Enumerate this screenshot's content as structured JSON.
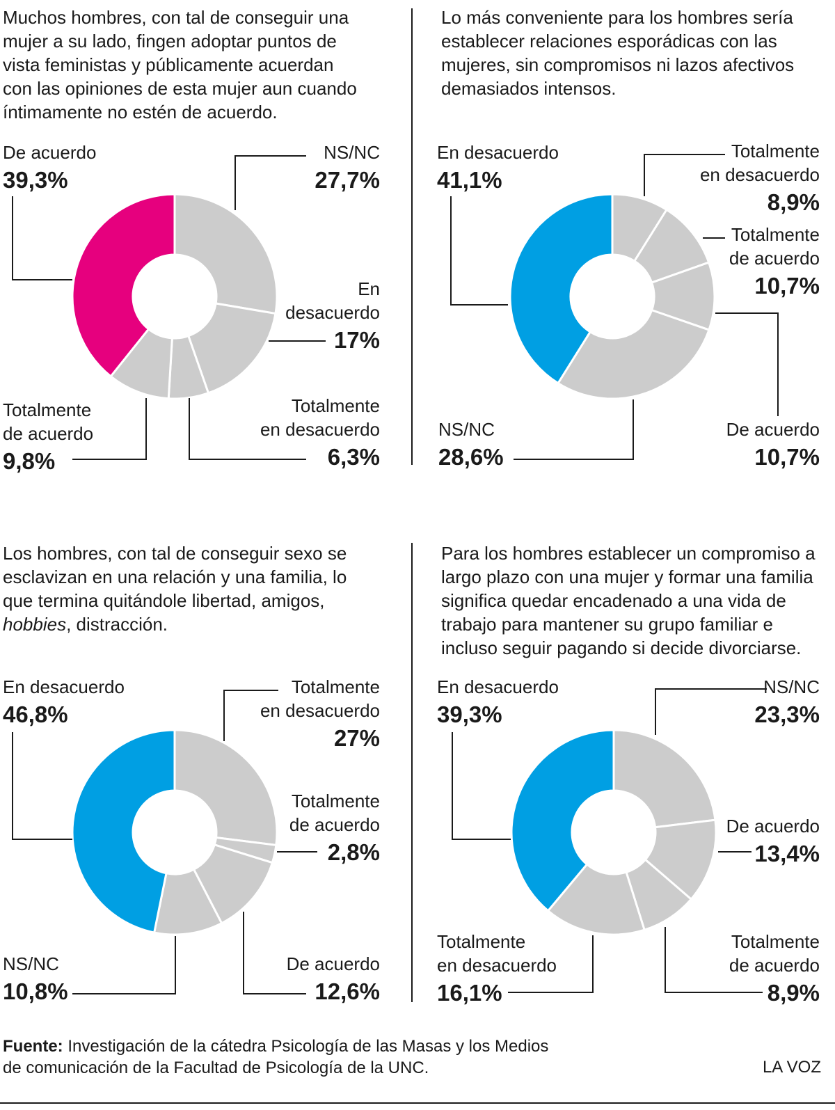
{
  "chart_data": [
    {
      "type": "pie",
      "question": [
        "Muchos hombres, con tal de conseguir una",
        "mujer a su lado, fingen adoptar puntos de",
        "vista feministas y públicamente acuerdan",
        "con las opiniones de esta mujer aun cuando",
        "íntimamente no estén de acuerdo."
      ],
      "slices": [
        {
          "label": [
            "NS/NC"
          ],
          "value": 27.7,
          "display": "27,7%",
          "color": "#cccccc"
        },
        {
          "label": [
            "En",
            "desacuerdo"
          ],
          "value": 17,
          "display": "17%",
          "color": "#cccccc"
        },
        {
          "label": [
            "Totalmente",
            "en desacuerdo"
          ],
          "value": 6.3,
          "display": "6,3%",
          "color": "#cccccc"
        },
        {
          "label": [
            "Totalmente",
            "de acuerdo"
          ],
          "value": 9.8,
          "display": "9,8%",
          "color": "#cccccc"
        },
        {
          "label": [
            "De acuerdo"
          ],
          "value": 39.3,
          "display": "39,3%",
          "color": "#e6007e"
        }
      ]
    },
    {
      "type": "pie",
      "question": [
        "Lo más conveniente para los hombres sería",
        "establecer relaciones esporádicas con las",
        "mujeres, sin compromisos ni lazos afectivos",
        "demasiados intensos."
      ],
      "slices": [
        {
          "label": [
            "Totalmente",
            "en desacuerdo"
          ],
          "value": 8.9,
          "display": "8,9%",
          "color": "#cccccc"
        },
        {
          "label": [
            "Totalmente",
            "de acuerdo"
          ],
          "value": 10.7,
          "display": "10,7%",
          "color": "#cccccc"
        },
        {
          "label": [
            "De acuerdo"
          ],
          "value": 10.7,
          "display": "10,7%",
          "color": "#cccccc"
        },
        {
          "label": [
            "NS/NC"
          ],
          "value": 28.6,
          "display": "28,6%",
          "color": "#cccccc"
        },
        {
          "label": [
            "En desacuerdo"
          ],
          "value": 41.1,
          "display": "41,1%",
          "color": "#009fe3"
        }
      ]
    },
    {
      "type": "pie",
      "question": [
        "Los hombres, con tal de conseguir sexo se",
        "esclavizan en una relación y una familia, lo",
        "que termina quitándole libertad, amigos,"
      ],
      "question_last_italic": "hobbies",
      "question_last_rest": ", distracción.",
      "slices": [
        {
          "label": [
            "Totalmente",
            "en desacuerdo"
          ],
          "value": 27,
          "display": "27%",
          "color": "#cccccc"
        },
        {
          "label": [
            "Totalmente",
            "de acuerdo"
          ],
          "value": 2.8,
          "display": "2,8%",
          "color": "#cccccc"
        },
        {
          "label": [
            "De acuerdo"
          ],
          "value": 12.6,
          "display": "12,6%",
          "color": "#cccccc"
        },
        {
          "label": [
            "NS/NC"
          ],
          "value": 10.8,
          "display": "10,8%",
          "color": "#cccccc"
        },
        {
          "label": [
            "En desacuerdo"
          ],
          "value": 46.8,
          "display": "46,8%",
          "color": "#009fe3"
        }
      ]
    },
    {
      "type": "pie",
      "question": [
        "Para los hombres establecer un compromiso a",
        "largo plazo con una mujer y formar una familia",
        "significa quedar encadenado a una vida de",
        "trabajo para mantener su grupo familiar e",
        "incluso seguir pagando si decide divorciarse."
      ],
      "slices": [
        {
          "label": [
            "NS/NC"
          ],
          "value": 23.3,
          "display": "23,3%",
          "color": "#cccccc"
        },
        {
          "label": [
            "De acuerdo"
          ],
          "value": 13.4,
          "display": "13,4%",
          "color": "#cccccc"
        },
        {
          "label": [
            "Totalmente",
            "de acuerdo"
          ],
          "value": 8.9,
          "display": "8,9%",
          "color": "#cccccc"
        },
        {
          "label": [
            "Totalmente",
            "en desacuerdo"
          ],
          "value": 16.1,
          "display": "16,1%",
          "color": "#cccccc"
        },
        {
          "label": [
            "En desacuerdo"
          ],
          "value": 39.3,
          "display": "39,3%",
          "color": "#009fe3"
        }
      ]
    }
  ],
  "footer": {
    "source_label": "Fuente:",
    "source_text": " Investigación de la cátedra Psicología de las Masas y los Medios de comunicación de la Facultad de Psicología de la UNC.",
    "brand": "LA VOZ"
  }
}
